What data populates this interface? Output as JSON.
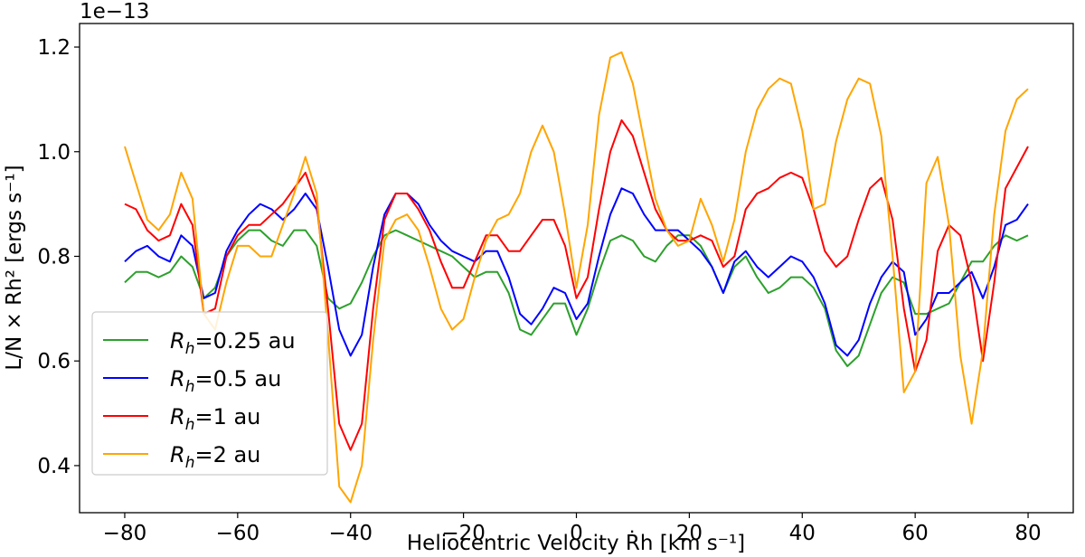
{
  "chart_data": {
    "type": "line",
    "title": "",
    "offset_label": "1e−13",
    "xlabel": "Heliocentric Velocity Ṙh [km s⁻¹]",
    "ylabel": "L/N × Rh² [ergs s⁻¹]",
    "xlim": [
      -88,
      88
    ],
    "ylim": [
      0.31,
      1.245
    ],
    "xticks": [
      -80,
      -60,
      -40,
      -20,
      0,
      20,
      40,
      60,
      80
    ],
    "xtick_labels": [
      "−80",
      "−60",
      "−40",
      "−20",
      "0",
      "20",
      "40",
      "60",
      "80"
    ],
    "yticks": [
      0.4,
      0.6,
      0.8,
      1.0,
      1.2
    ],
    "ytick_labels": [
      "0.4",
      "0.6",
      "0.8",
      "1.0",
      "1.2"
    ],
    "grid": false,
    "legend_position": "lower-left",
    "x": [
      -80,
      -78,
      -76,
      -74,
      -72,
      -70,
      -68,
      -66,
      -64,
      -62,
      -60,
      -58,
      -56,
      -54,
      -52,
      -50,
      -48,
      -46,
      -44,
      -42,
      -40,
      -38,
      -36,
      -34,
      -32,
      -30,
      -28,
      -26,
      -24,
      -22,
      -20,
      -18,
      -16,
      -14,
      -12,
      -10,
      -8,
      -6,
      -4,
      -2,
      0,
      2,
      4,
      6,
      8,
      10,
      12,
      14,
      16,
      18,
      20,
      22,
      24,
      26,
      28,
      30,
      32,
      34,
      36,
      38,
      40,
      42,
      44,
      46,
      48,
      50,
      52,
      54,
      56,
      58,
      60,
      62,
      64,
      66,
      68,
      70,
      72,
      74,
      76,
      78,
      80
    ],
    "series": [
      {
        "name": "Rh=0.25 au",
        "label_prefix": "R",
        "label_sub": "h",
        "label_suffix": "=0.25 au",
        "color": "#2ca02c",
        "values": [
          0.75,
          0.77,
          0.77,
          0.76,
          0.77,
          0.8,
          0.78,
          0.72,
          0.74,
          0.8,
          0.83,
          0.85,
          0.85,
          0.83,
          0.82,
          0.85,
          0.85,
          0.82,
          0.72,
          0.7,
          0.71,
          0.75,
          0.8,
          0.84,
          0.85,
          0.84,
          0.83,
          0.82,
          0.81,
          0.8,
          0.78,
          0.76,
          0.77,
          0.77,
          0.73,
          0.66,
          0.65,
          0.68,
          0.71,
          0.71,
          0.65,
          0.7,
          0.77,
          0.83,
          0.84,
          0.83,
          0.8,
          0.79,
          0.82,
          0.84,
          0.84,
          0.82,
          0.78,
          0.73,
          0.78,
          0.8,
          0.76,
          0.73,
          0.74,
          0.76,
          0.76,
          0.74,
          0.7,
          0.62,
          0.59,
          0.61,
          0.67,
          0.73,
          0.76,
          0.75,
          0.69,
          0.69,
          0.7,
          0.71,
          0.75,
          0.79,
          0.79,
          0.82,
          0.84,
          0.83,
          0.84
        ]
      },
      {
        "name": "Rh=0.5 au",
        "label_prefix": "R",
        "label_sub": "h",
        "label_suffix": "=0.5 au",
        "color": "#0000ff",
        "values": [
          0.79,
          0.81,
          0.82,
          0.8,
          0.79,
          0.84,
          0.82,
          0.72,
          0.73,
          0.81,
          0.85,
          0.88,
          0.9,
          0.89,
          0.87,
          0.89,
          0.92,
          0.89,
          0.78,
          0.66,
          0.61,
          0.65,
          0.78,
          0.88,
          0.92,
          0.92,
          0.9,
          0.86,
          0.83,
          0.81,
          0.8,
          0.79,
          0.81,
          0.81,
          0.76,
          0.69,
          0.67,
          0.7,
          0.74,
          0.73,
          0.68,
          0.71,
          0.8,
          0.88,
          0.93,
          0.92,
          0.88,
          0.85,
          0.85,
          0.85,
          0.83,
          0.81,
          0.78,
          0.73,
          0.79,
          0.81,
          0.78,
          0.76,
          0.78,
          0.8,
          0.79,
          0.76,
          0.71,
          0.63,
          0.61,
          0.64,
          0.71,
          0.76,
          0.79,
          0.77,
          0.65,
          0.68,
          0.73,
          0.73,
          0.75,
          0.77,
          0.72,
          0.78,
          0.86,
          0.87,
          0.9
        ]
      },
      {
        "name": "Rh=1 au",
        "label_prefix": "R",
        "label_sub": "h",
        "label_suffix": "=1 au",
        "color": "#ff0000",
        "values": [
          0.9,
          0.89,
          0.85,
          0.83,
          0.84,
          0.9,
          0.86,
          0.69,
          0.7,
          0.8,
          0.84,
          0.86,
          0.86,
          0.88,
          0.9,
          0.93,
          0.96,
          0.9,
          0.7,
          0.48,
          0.43,
          0.48,
          0.7,
          0.87,
          0.92,
          0.92,
          0.89,
          0.85,
          0.79,
          0.74,
          0.74,
          0.79,
          0.84,
          0.84,
          0.81,
          0.81,
          0.84,
          0.87,
          0.87,
          0.82,
          0.72,
          0.76,
          0.89,
          1.0,
          1.06,
          1.03,
          0.96,
          0.89,
          0.85,
          0.83,
          0.83,
          0.84,
          0.83,
          0.78,
          0.8,
          0.89,
          0.92,
          0.93,
          0.95,
          0.96,
          0.95,
          0.89,
          0.81,
          0.78,
          0.8,
          0.87,
          0.93,
          0.95,
          0.87,
          0.7,
          0.58,
          0.64,
          0.81,
          0.86,
          0.84,
          0.75,
          0.6,
          0.75,
          0.93,
          0.97,
          1.01
        ]
      },
      {
        "name": "Rh=2 au",
        "label_prefix": "R",
        "label_sub": "h",
        "label_suffix": "=2 au",
        "color": "#ffa500",
        "values": [
          1.01,
          0.94,
          0.87,
          0.85,
          0.88,
          0.96,
          0.91,
          0.69,
          0.66,
          0.75,
          0.82,
          0.82,
          0.8,
          0.8,
          0.86,
          0.92,
          0.99,
          0.92,
          0.65,
          0.36,
          0.33,
          0.4,
          0.64,
          0.83,
          0.87,
          0.88,
          0.85,
          0.78,
          0.7,
          0.66,
          0.68,
          0.76,
          0.83,
          0.87,
          0.88,
          0.92,
          1.0,
          1.05,
          1.0,
          0.88,
          0.74,
          0.86,
          1.07,
          1.18,
          1.19,
          1.13,
          1.02,
          0.91,
          0.85,
          0.82,
          0.83,
          0.91,
          0.86,
          0.79,
          0.87,
          1.0,
          1.08,
          1.12,
          1.14,
          1.13,
          1.04,
          0.89,
          0.9,
          1.02,
          1.1,
          1.14,
          1.13,
          1.03,
          0.8,
          0.54,
          0.58,
          0.94,
          0.99,
          0.86,
          0.61,
          0.48,
          0.62,
          0.88,
          1.04,
          1.1,
          1.12
        ]
      }
    ]
  }
}
